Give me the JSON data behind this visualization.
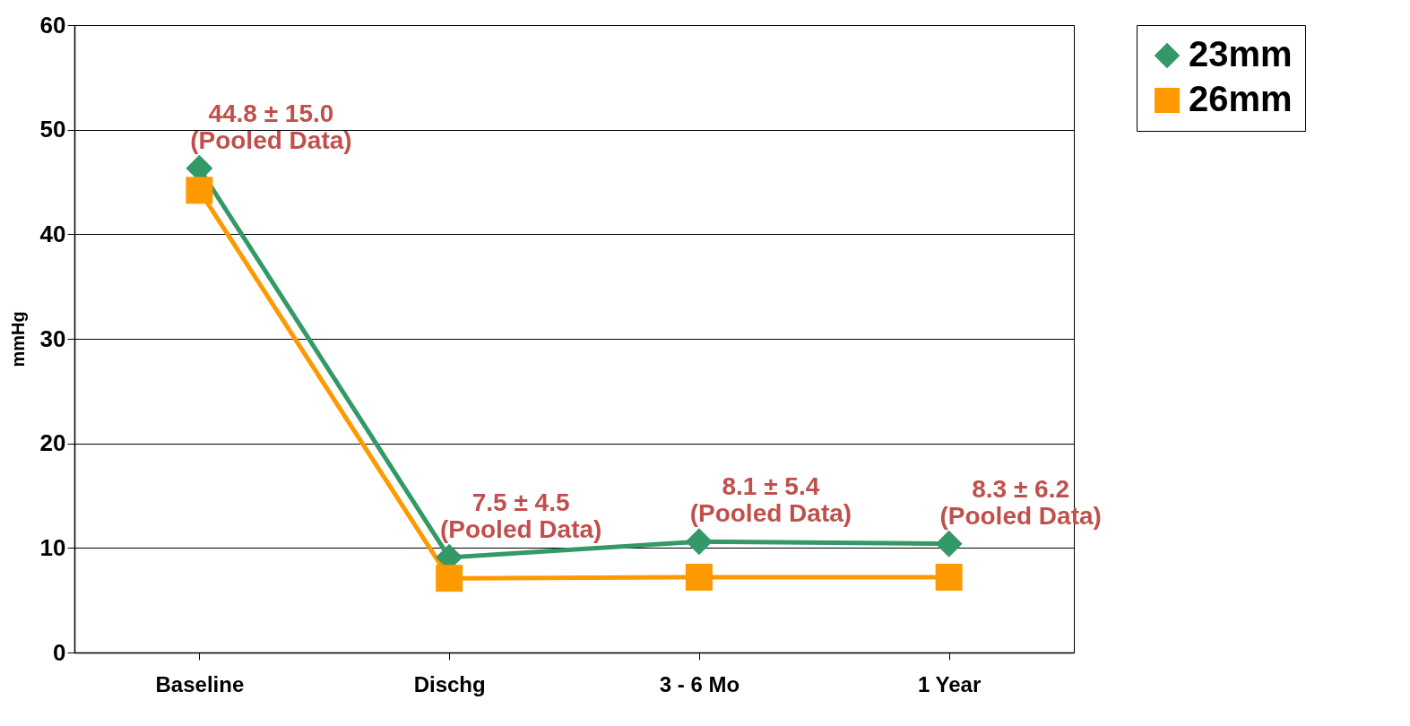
{
  "chart_data": {
    "type": "line",
    "ylabel": "mmHg",
    "categories": [
      "Baseline",
      "Dischg",
      "3 - 6 Mo",
      "1 Year"
    ],
    "series": [
      {
        "name": "23mm",
        "color": "#339966",
        "marker": "diamond",
        "values": [
          46.3,
          9.1,
          10.6,
          10.4
        ]
      },
      {
        "name": "26mm",
        "color": "#ff9900",
        "marker": "square",
        "values": [
          44.2,
          7.1,
          7.2,
          7.2
        ]
      }
    ],
    "ylim": [
      0,
      60
    ],
    "yticks": [
      0,
      10,
      20,
      30,
      40,
      50,
      60
    ],
    "grid": "y",
    "legend": "right",
    "annotations": [
      "44.8 ± 15.0\n(Pooled Data)",
      "7.5 ± 4.5\n(Pooled Data)",
      "8.1 ± 5.4\n(Pooled Data)",
      "8.3 ± 6.2\n(Pooled Data)"
    ]
  }
}
